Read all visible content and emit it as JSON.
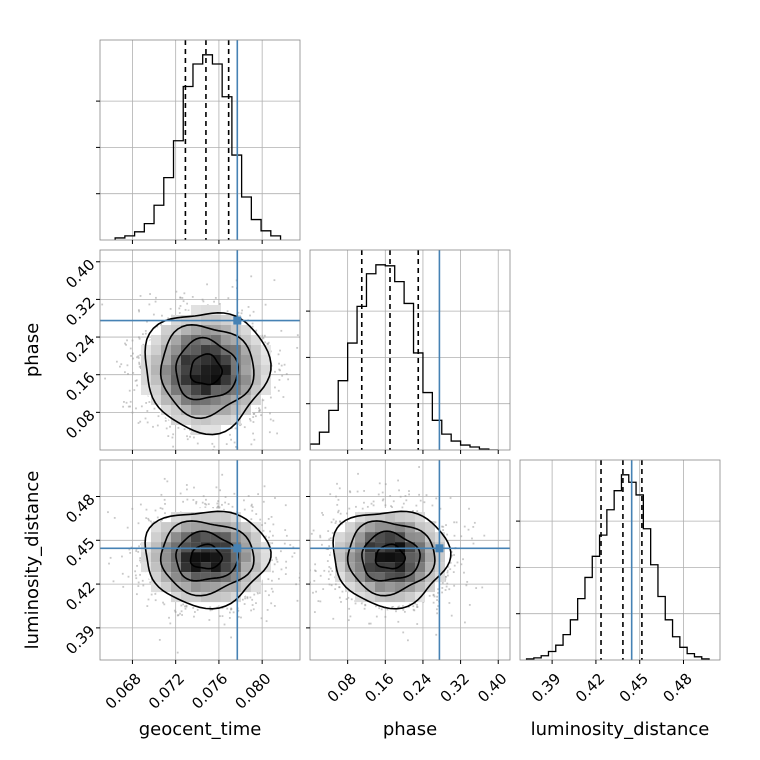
{
  "chart_data": {
    "type": "corner",
    "parameters": [
      "geocent_time",
      "phase",
      "luminosity_distance"
    ],
    "axis_labels": {
      "x": [
        "geocent_time",
        "phase",
        "luminosity_distance"
      ],
      "y": [
        "phase",
        "luminosity_distance"
      ]
    },
    "ranges": {
      "geocent_time": [
        0.065,
        0.0835
      ],
      "phase": [
        0.0,
        0.425
      ],
      "luminosity_distance": [
        0.368,
        0.505
      ]
    },
    "ticks": {
      "geocent_time": {
        "values": [
          0.068,
          0.072,
          0.076,
          0.08
        ],
        "labels": [
          "0.068",
          "0.072",
          "0.076",
          "0.080"
        ]
      },
      "phase": {
        "values": [
          0.08,
          0.16,
          0.24,
          0.32,
          0.4
        ],
        "labels": [
          "0.08",
          "0.16",
          "0.24",
          "0.32",
          "0.40"
        ]
      },
      "luminosity_distance": {
        "values": [
          0.39,
          0.42,
          0.45,
          0.48
        ],
        "labels": [
          "0.39",
          "0.42",
          "0.45",
          "0.48"
        ]
      }
    },
    "truths": {
      "geocent_time": 0.0777,
      "phase": 0.275,
      "luminosity_distance": 0.4445
    },
    "truth_color": "#4682b4",
    "quantiles": {
      "geocent_time": [
        0.0729,
        0.0748,
        0.0769
      ],
      "phase": [
        0.11,
        0.17,
        0.23
      ],
      "luminosity_distance": [
        0.4235,
        0.4385,
        0.4515
      ]
    },
    "histograms": {
      "geocent_time": {
        "bin_edges": [
          0.0664,
          0.0673,
          0.0682,
          0.0691,
          0.07,
          0.0709,
          0.0718,
          0.0727,
          0.0736,
          0.0745,
          0.0754,
          0.0763,
          0.0772,
          0.0781,
          0.079,
          0.0799,
          0.0808,
          0.0817
        ],
        "counts": [
          2,
          4,
          8,
          16,
          34,
          61,
          97,
          150,
          172,
          181,
          172,
          140,
          83,
          42,
          20,
          9,
          4
        ]
      },
      "phase": {
        "bin_edges": [
          0.0,
          0.02,
          0.04,
          0.06,
          0.08,
          0.1,
          0.12,
          0.14,
          0.16,
          0.18,
          0.2,
          0.22,
          0.24,
          0.26,
          0.28,
          0.3,
          0.32,
          0.34,
          0.36,
          0.38,
          0.4
        ],
        "counts": [
          6,
          18,
          40,
          70,
          108,
          145,
          178,
          187,
          186,
          170,
          148,
          98,
          58,
          30,
          16,
          9,
          5,
          3,
          1,
          0
        ]
      },
      "luminosity_distance": {
        "bin_edges": [
          0.3725,
          0.3775,
          0.3825,
          0.3875,
          0.3925,
          0.3975,
          0.4025,
          0.4075,
          0.4125,
          0.4175,
          0.4225,
          0.4275,
          0.4325,
          0.4375,
          0.4425,
          0.4475,
          0.4525,
          0.4575,
          0.4625,
          0.4675,
          0.4725,
          0.4775,
          0.4825,
          0.4875,
          0.4925,
          0.4975
        ],
        "counts": [
          1,
          2,
          4,
          8,
          14,
          24,
          38,
          58,
          78,
          98,
          118,
          142,
          160,
          175,
          168,
          156,
          124,
          90,
          60,
          38,
          22,
          12,
          6,
          3,
          1
        ]
      }
    },
    "joint_peaks": {
      "phase_vs_geocent_time": {
        "x": 0.0748,
        "y": 0.17
      },
      "luminosity_distance_vs_geocent_time": {
        "x": 0.0748,
        "y": 0.4385
      },
      "luminosity_distance_vs_phase": {
        "x": 0.17,
        "y": 0.4385
      }
    },
    "grid": true,
    "legend": "none"
  }
}
